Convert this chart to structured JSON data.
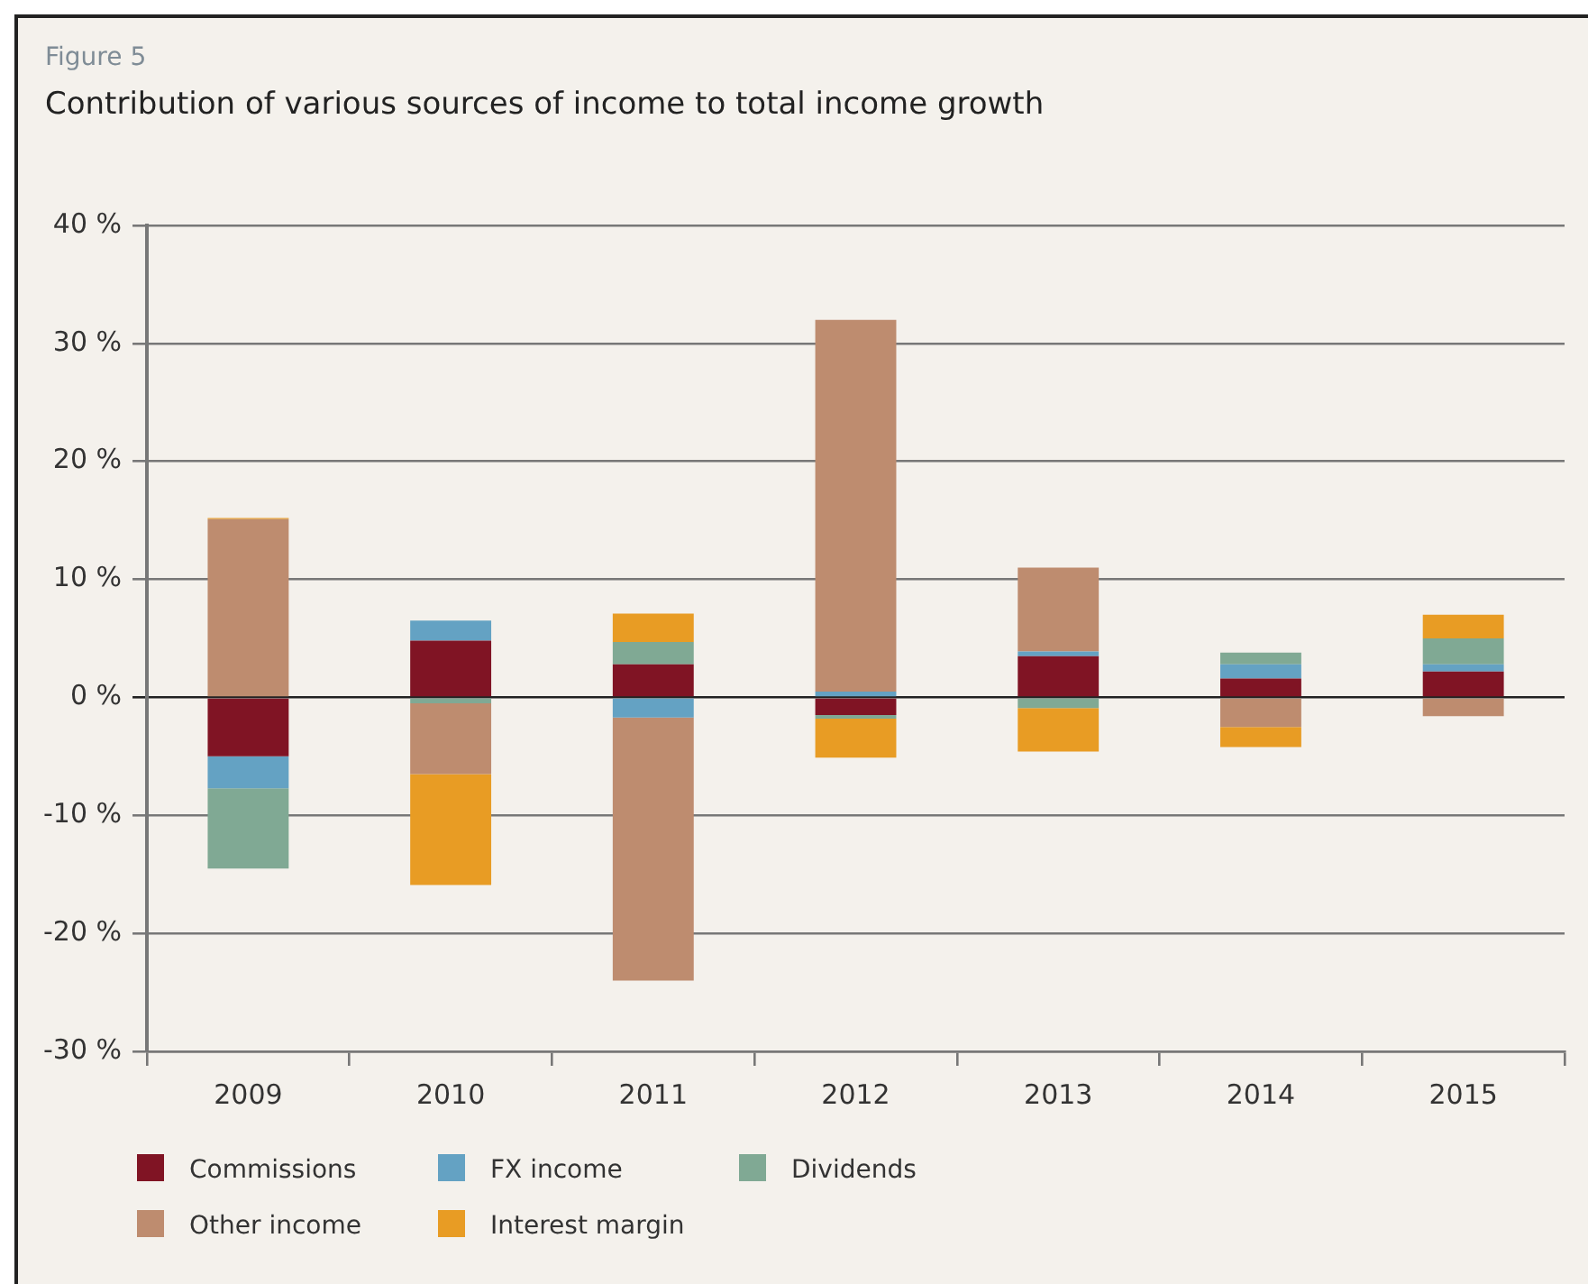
{
  "chart_data": {
    "type": "bar",
    "title": "Contribution of various sources of income to total income growth",
    "annotations": [
      "Figure 5"
    ],
    "categories": [
      "2009",
      "2010",
      "2011",
      "2012",
      "2013",
      "2014",
      "2015"
    ],
    "stacked": true,
    "series": [
      {
        "name": "Commissions",
        "color": "#801424",
        "values": [
          -5.0,
          4.8,
          2.8,
          -1.5,
          3.5,
          1.6,
          2.2
        ]
      },
      {
        "name": "FX income",
        "color": "#64a2c3",
        "values": [
          -2.7,
          1.7,
          -1.7,
          0.5,
          0.4,
          1.2,
          0.6
        ]
      },
      {
        "name": "Dividends",
        "color": "#80a994",
        "values": [
          -6.8,
          -0.5,
          1.9,
          -0.3,
          -0.9,
          1.0,
          2.2
        ]
      },
      {
        "name": "Other income",
        "color": "#be8c6f",
        "values": [
          15.1,
          -6.0,
          -22.3,
          31.5,
          7.1,
          -2.5,
          -1.6
        ]
      },
      {
        "name": "Interest margin",
        "color": "#e89c24",
        "values": [
          0.1,
          -9.4,
          2.4,
          -3.3,
          -3.7,
          -1.7,
          2.0
        ]
      }
    ],
    "ylim": [
      -30,
      40
    ],
    "yticks": [
      {
        "value": -30,
        "label": "-30 %"
      },
      {
        "value": -20,
        "label": "-20 %"
      },
      {
        "value": -10,
        "label": "-10 %"
      },
      {
        "value": 0,
        "label": "0 %"
      },
      {
        "value": 10,
        "label": "10 %"
      },
      {
        "value": 20,
        "label": "20 %"
      },
      {
        "value": 30,
        "label": "30 %"
      },
      {
        "value": 40,
        "label": "40 %"
      }
    ],
    "grid": "y",
    "legend": "bottom"
  }
}
